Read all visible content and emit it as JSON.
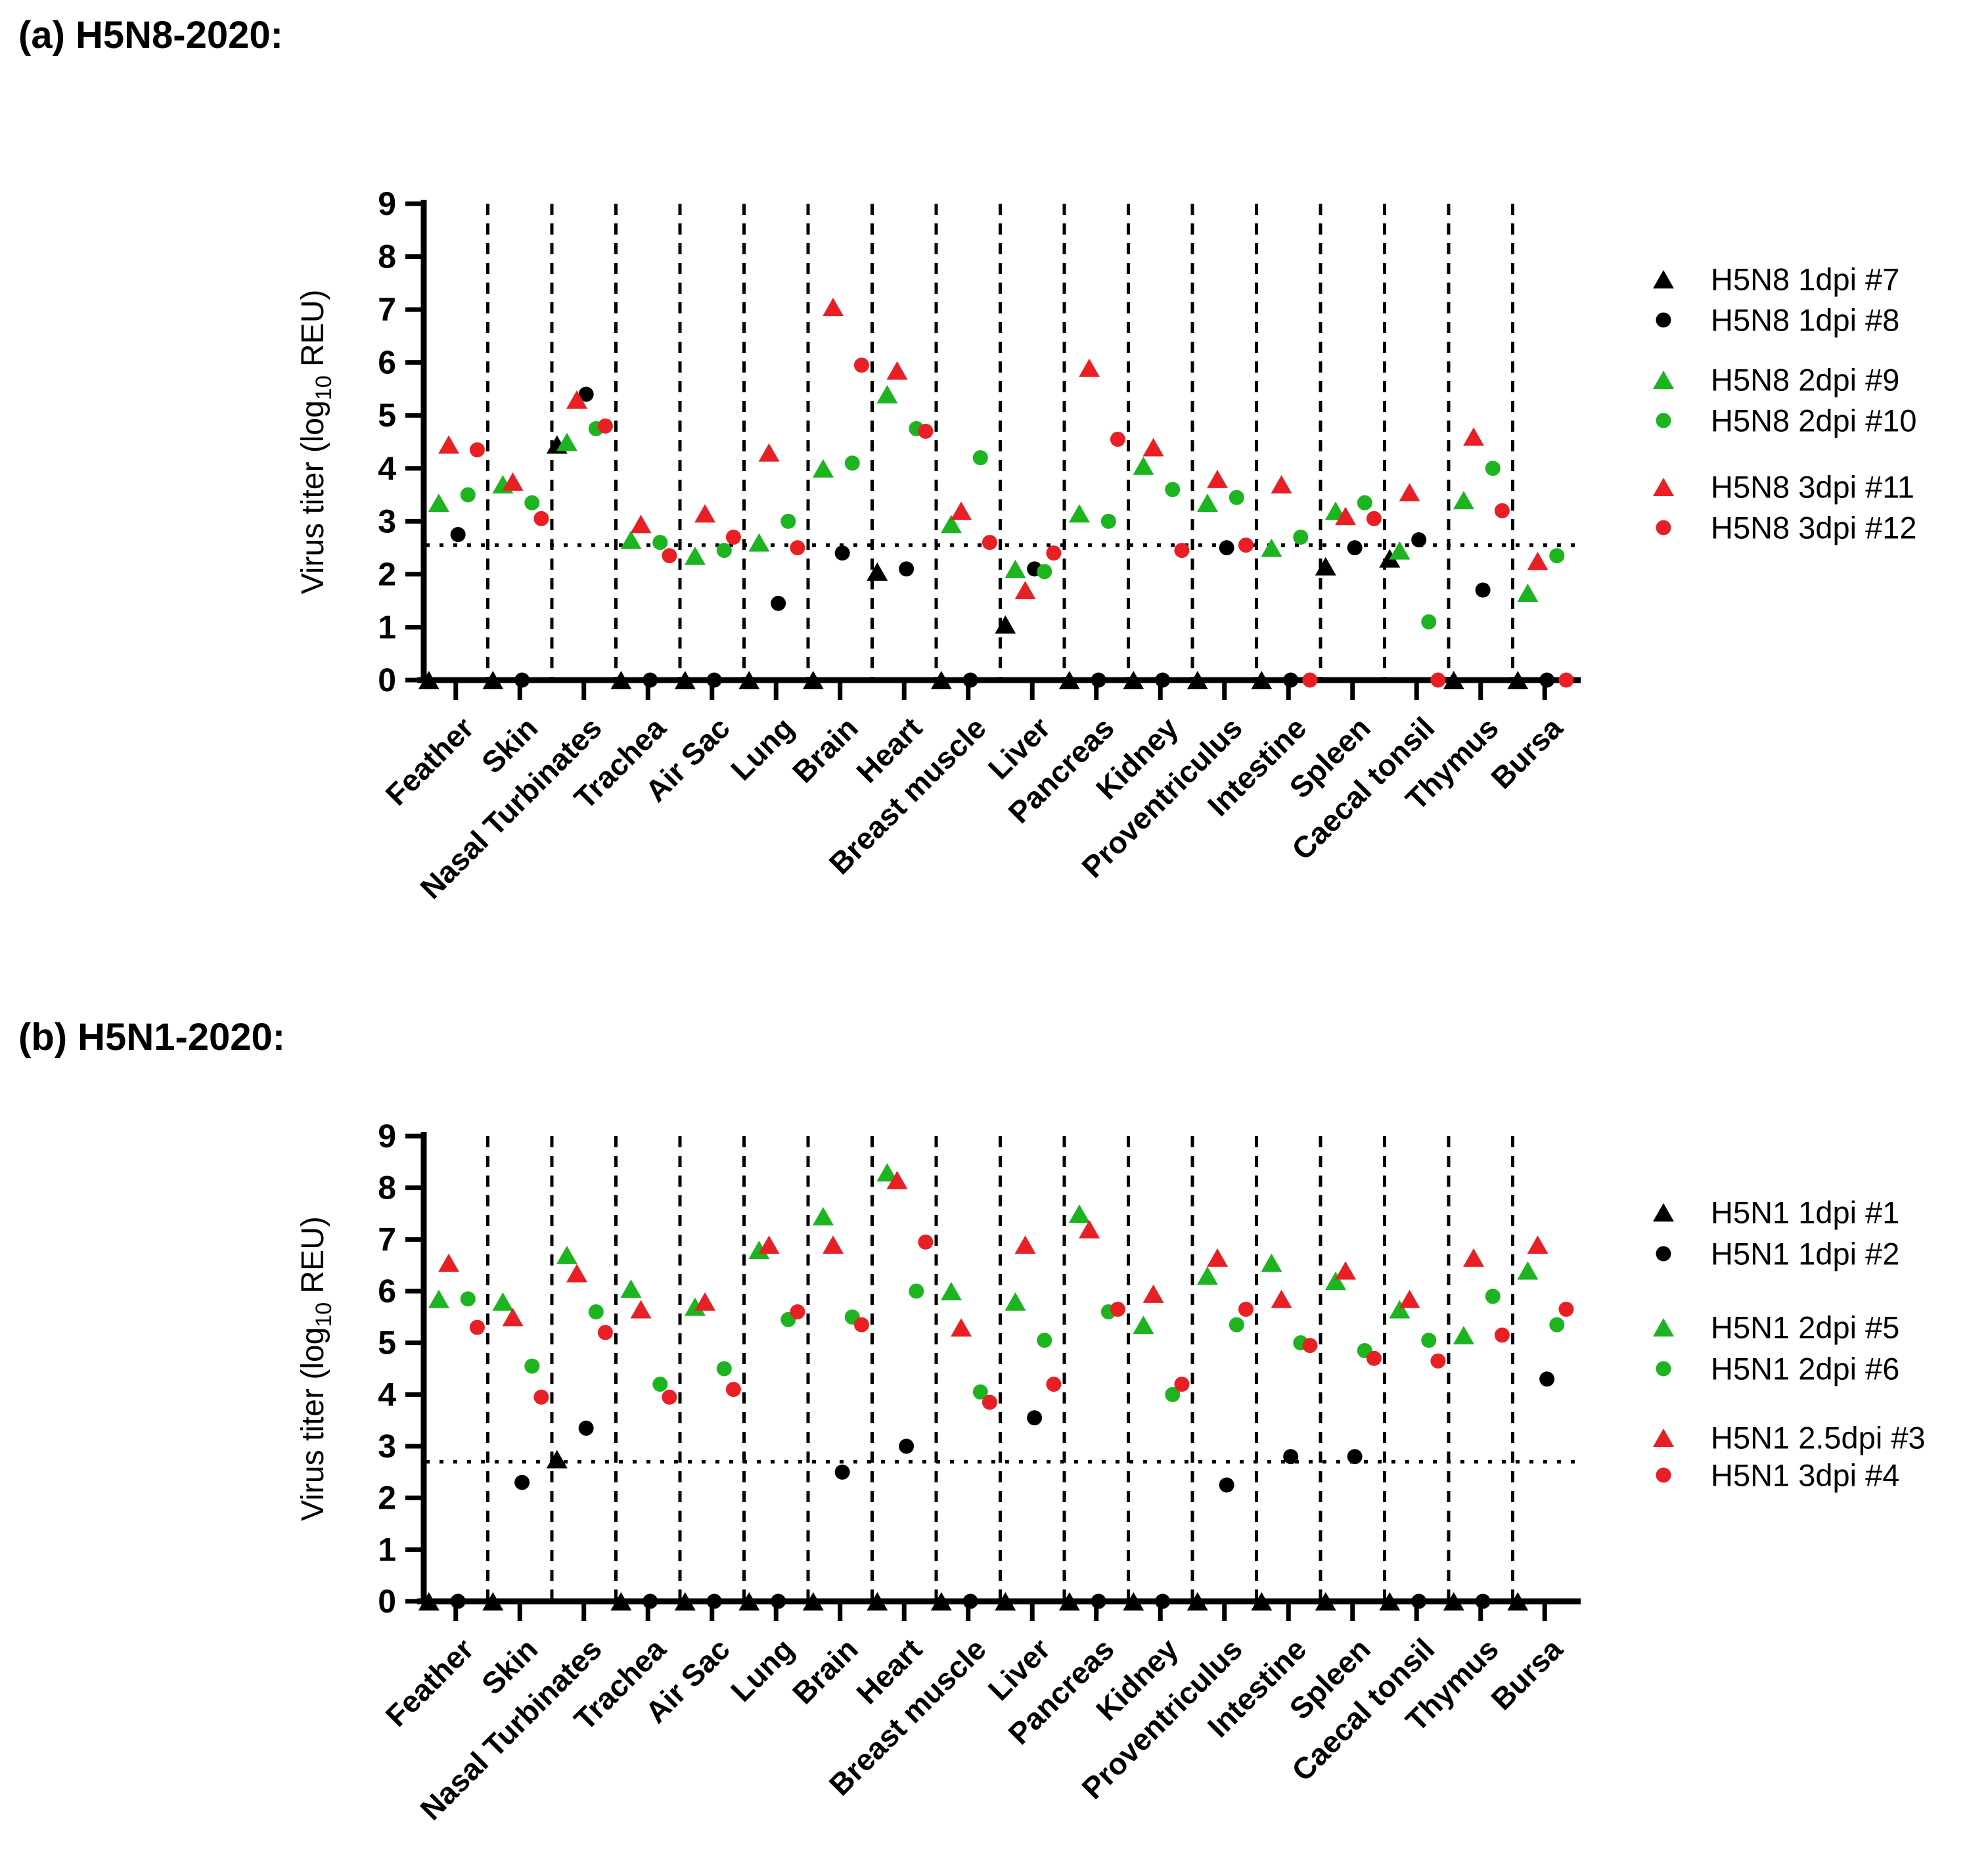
{
  "colors": {
    "black": "#000000",
    "green": "#1CB41F",
    "red": "#E82025"
  },
  "chart_data": [
    {
      "type": "scatter",
      "title": "(a) H5N8-2020:",
      "ylabel_pre": "Virus titer (log",
      "ylabel_sub": "10",
      "ylabel_post": "  REU)",
      "ylim": [
        0,
        9
      ],
      "yticks": [
        0,
        1,
        2,
        3,
        4,
        5,
        6,
        7,
        8,
        9
      ],
      "detection_limit": 2.55,
      "grid": "dashed vertical category separators",
      "legend_position": "right",
      "categories": [
        "Feather",
        "Skin",
        "Nasal Turbinates",
        "Trachea",
        "Air Sac",
        "Lung",
        "Brain",
        "Heart",
        "Breast muscle",
        "Liver",
        "Pancreas",
        "Kidney",
        "Proventriculus",
        "Intestine",
        "Spleen",
        "Caecal tonsil",
        "Thymus",
        "Bursa"
      ],
      "series": [
        {
          "name": "H5N8 1dpi #7",
          "marker": "triangle",
          "color": "#000000",
          "values": [
            0,
            0,
            4.45,
            0,
            0,
            0,
            0,
            2.05,
            0,
            1.05,
            0,
            0,
            0,
            0,
            2.15,
            2.3,
            0,
            0
          ]
        },
        {
          "name": "H5N8 1dpi #8",
          "marker": "circle",
          "color": "#000000",
          "values": [
            2.75,
            0,
            5.4,
            0,
            0,
            1.45,
            2.4,
            2.1,
            0,
            2.1,
            0,
            0,
            2.5,
            0,
            2.5,
            2.65,
            1.7,
            0
          ]
        },
        {
          "name": "H5N8 2dpi #9",
          "marker": "triangle",
          "color": "#1CB41F",
          "values": [
            3.35,
            3.7,
            4.5,
            2.65,
            2.35,
            2.6,
            4.0,
            5.4,
            2.95,
            2.1,
            3.15,
            4.05,
            3.35,
            2.5,
            3.2,
            2.45,
            3.4,
            1.65
          ]
        },
        {
          "name": "H5N8 2dpi #10",
          "marker": "circle",
          "color": "#1CB41F",
          "values": [
            3.5,
            3.35,
            4.75,
            2.6,
            2.45,
            3.0,
            4.1,
            4.75,
            4.2,
            2.05,
            3.0,
            3.6,
            3.45,
            2.7,
            3.35,
            1.1,
            4.0,
            2.35
          ]
        },
        {
          "name": "H5N8 3dpi #11",
          "marker": "triangle",
          "color": "#E82025",
          "values": [
            4.45,
            3.75,
            5.3,
            2.95,
            3.15,
            4.3,
            7.05,
            5.85,
            3.2,
            1.7,
            5.9,
            4.4,
            3.8,
            3.7,
            3.1,
            3.55,
            4.6,
            2.25
          ]
        },
        {
          "name": "H5N8 3dpi #12",
          "marker": "circle",
          "color": "#E82025",
          "values": [
            4.35,
            3.05,
            4.8,
            2.35,
            2.7,
            2.5,
            5.95,
            4.7,
            2.6,
            2.4,
            4.55,
            2.45,
            2.55,
            0,
            3.05,
            0,
            3.2,
            0
          ]
        }
      ]
    },
    {
      "type": "scatter",
      "title": "(b) H5N1-2020:",
      "ylabel_pre": "Virus titer (log",
      "ylabel_sub": "10",
      "ylabel_post": "  REU)",
      "ylim": [
        0,
        9
      ],
      "yticks": [
        0,
        1,
        2,
        3,
        4,
        5,
        6,
        7,
        8,
        9
      ],
      "detection_limit": 2.7,
      "grid": "dashed vertical category separators",
      "legend_position": "right",
      "categories": [
        "Feather",
        "Skin",
        "Nasal Turbinates",
        "Trachea",
        "Air Sac",
        "Lung",
        "Brain",
        "Heart",
        "Breast muscle",
        "Liver",
        "Pancreas",
        "Kidney",
        "Proventriculus",
        "Intestine",
        "Spleen",
        "Caecal tonsil",
        "Thymus",
        "Bursa"
      ],
      "series": [
        {
          "name": "H5N1 1dpi #1",
          "marker": "triangle",
          "color": "#000000",
          "values": [
            0,
            0,
            2.75,
            0,
            0,
            0,
            0,
            0,
            0,
            0,
            0,
            0,
            0,
            0,
            0,
            0,
            0,
            0
          ]
        },
        {
          "name": "H5N1 1dpi #2",
          "marker": "circle",
          "color": "#000000",
          "values": [
            0,
            2.3,
            3.35,
            0,
            0,
            0,
            2.5,
            3.0,
            0,
            3.55,
            0,
            0,
            2.25,
            2.8,
            2.8,
            0,
            0,
            4.3
          ]
        },
        {
          "name": "H5N1 2dpi #5",
          "marker": "triangle",
          "color": "#1CB41F",
          "values": [
            5.85,
            5.8,
            6.7,
            6.05,
            5.7,
            6.8,
            7.45,
            8.3,
            6.0,
            5.8,
            7.5,
            5.35,
            6.3,
            6.55,
            6.2,
            5.65,
            5.15,
            6.4
          ]
        },
        {
          "name": "H5N1 2dpi #6",
          "marker": "circle",
          "color": "#1CB41F",
          "values": [
            5.85,
            4.55,
            5.6,
            4.2,
            4.5,
            5.45,
            5.5,
            6.0,
            4.05,
            5.05,
            5.6,
            4.0,
            5.35,
            5.0,
            4.85,
            5.05,
            5.9,
            5.35
          ]
        },
        {
          "name": "H5N1 2.5dpi #3",
          "marker": "triangle",
          "color": "#E82025",
          "values": [
            6.55,
            5.5,
            6.35,
            5.65,
            5.8,
            6.9,
            6.9,
            8.15,
            5.3,
            6.9,
            7.2,
            5.95,
            6.65,
            5.85,
            6.4,
            5.85,
            6.65,
            6.9
          ]
        },
        {
          "name": "H5N1 3dpi #4",
          "marker": "circle",
          "color": "#E82025",
          "values": [
            5.3,
            3.95,
            5.2,
            3.95,
            4.1,
            5.6,
            5.35,
            6.95,
            3.85,
            4.2,
            5.65,
            4.2,
            5.65,
            4.95,
            4.7,
            4.65,
            5.15,
            5.65
          ]
        }
      ]
    }
  ]
}
